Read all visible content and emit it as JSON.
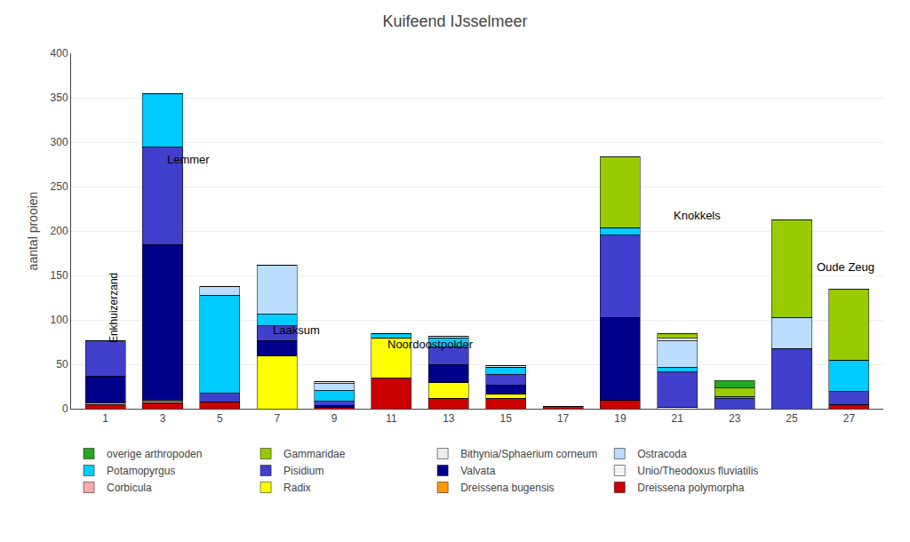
{
  "chart_data": {
    "type": "bar",
    "title": "Kuifeend IJsselmeer",
    "ylabel": "aantal prooien",
    "stacked": true,
    "grid": true,
    "legend": "bottom",
    "x": [
      1,
      3,
      5,
      7,
      9,
      11,
      13,
      15,
      17,
      19,
      21,
      23,
      25,
      27
    ],
    "xlim": [
      -0.2,
      28.2
    ],
    "xticks": [
      1,
      3,
      5,
      7,
      9,
      11,
      13,
      15,
      17,
      19,
      21,
      23,
      25,
      27
    ],
    "ylim": [
      0,
      400
    ],
    "yticks": [
      0,
      50,
      100,
      150,
      200,
      250,
      300,
      350,
      400
    ],
    "series": [
      {
        "name": "Dreissena polymorpha",
        "color": "#CC0000",
        "values": [
          5,
          7,
          8,
          0,
          2,
          35,
          12,
          12,
          3,
          10,
          0,
          0,
          0,
          5
        ]
      },
      {
        "name": "Dreissena bugensis",
        "color": "#FF9900",
        "values": [
          0,
          0,
          0,
          0,
          0,
          0,
          0,
          0,
          0,
          0,
          0,
          0,
          0,
          0
        ]
      },
      {
        "name": "Radix",
        "color": "#FFFF00",
        "values": [
          0,
          0,
          0,
          60,
          0,
          45,
          18,
          5,
          0,
          0,
          0,
          0,
          0,
          0
        ]
      },
      {
        "name": "Corbicula",
        "color": "#FFAAAA",
        "values": [
          2,
          2,
          0,
          0,
          0,
          0,
          0,
          0,
          0,
          0,
          0,
          0,
          0,
          0
        ]
      },
      {
        "name": "Unio/Theodoxus fluviatilis",
        "color": "#F5F5F5",
        "values": [
          0,
          1,
          0,
          0,
          0,
          0,
          0,
          0,
          0,
          0,
          2,
          0,
          0,
          0
        ]
      },
      {
        "name": "Valvata",
        "color": "#00008B",
        "values": [
          30,
          175,
          0,
          17,
          2,
          0,
          20,
          10,
          0,
          93,
          0,
          0,
          0,
          0
        ]
      },
      {
        "name": "Pisidium",
        "color": "#4040CC",
        "values": [
          40,
          110,
          10,
          17,
          5,
          0,
          20,
          12,
          0,
          93,
          40,
          12,
          68,
          15
        ]
      },
      {
        "name": "Potamopyrgus",
        "color": "#00CCFF",
        "values": [
          0,
          60,
          110,
          13,
          12,
          5,
          10,
          8,
          0,
          8,
          5,
          2,
          0,
          35
        ]
      },
      {
        "name": "Ostracoda",
        "color": "#BBDDFF",
        "values": [
          0,
          0,
          10,
          55,
          8,
          0,
          0,
          0,
          0,
          0,
          30,
          0,
          35,
          0
        ]
      },
      {
        "name": "Bithynia/Sphaerium corneum",
        "color": "#EEEEEE",
        "values": [
          0,
          0,
          0,
          0,
          2,
          0,
          2,
          2,
          0,
          0,
          3,
          0,
          0,
          0
        ]
      },
      {
        "name": "Gammaridae",
        "color": "#99CC00",
        "values": [
          0,
          0,
          0,
          0,
          0,
          0,
          0,
          0,
          0,
          80,
          5,
          10,
          110,
          80
        ]
      },
      {
        "name": "overige arthropoden",
        "color": "#22AA22",
        "values": [
          0,
          0,
          0,
          0,
          0,
          0,
          0,
          0,
          0,
          0,
          0,
          8,
          0,
          0
        ]
      }
    ],
    "annotations": [
      {
        "text": "Enkhuizerzand",
        "x": 1.0,
        "y": 72
      },
      {
        "text": "Lemmer",
        "x": 3.1,
        "y": 271
      },
      {
        "text": "Laaksum",
        "x": 6.8,
        "y": 79
      },
      {
        "text": "Noordoostpolder",
        "x": 10.8,
        "y": 63
      },
      {
        "text": "Knokkels",
        "x": 20.8,
        "y": 208
      },
      {
        "text": "Oude Zeug",
        "x": 25.8,
        "y": 150
      }
    ]
  }
}
